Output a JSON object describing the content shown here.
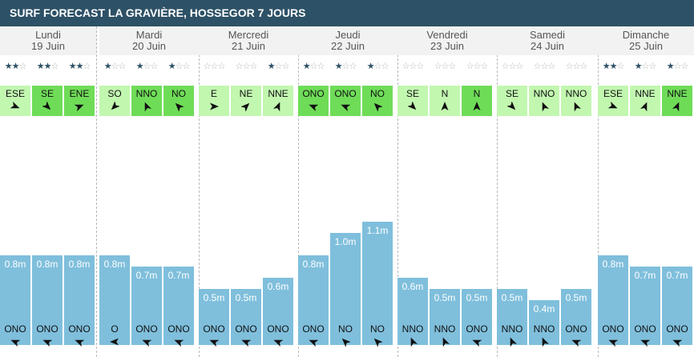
{
  "title": "SURF FORECAST LA GRAVIÈRE, HOSSEGOR 7 JOURS",
  "colors": {
    "header_bg": "#2d5166",
    "wind_light": "#c2f7b0",
    "wind_strong": "#6fdc58",
    "wave_bar": "#7fbfdc",
    "star_on": "#2d5166",
    "star_off": "#b4b4b4"
  },
  "days": [
    {
      "name": "Lundi",
      "date": "19 Juin",
      "slots": [
        {
          "stars": 2,
          "wind": "ESE",
          "wind_level": "light",
          "wave": "0.8m",
          "wave_m": 0.8,
          "swell": "ONO"
        },
        {
          "stars": 2,
          "wind": "SE",
          "wind_level": "strong",
          "wave": "0.8m",
          "wave_m": 0.8,
          "swell": "ONO"
        },
        {
          "stars": 2,
          "wind": "ENE",
          "wind_level": "strong",
          "wave": "0.8m",
          "wave_m": 0.8,
          "swell": "ONO"
        }
      ]
    },
    {
      "name": "Mardi",
      "date": "20 Juin",
      "slots": [
        {
          "stars": 1,
          "wind": "SO",
          "wind_level": "light",
          "wave": "0.8m",
          "wave_m": 0.8,
          "swell": "O"
        },
        {
          "stars": 1,
          "wind": "NNO",
          "wind_level": "strong",
          "wave": "0.7m",
          "wave_m": 0.7,
          "swell": "ONO"
        },
        {
          "stars": 1,
          "wind": "NO",
          "wind_level": "strong",
          "wave": "0.7m",
          "wave_m": 0.7,
          "swell": "ONO"
        }
      ]
    },
    {
      "name": "Mercredi",
      "date": "21 Juin",
      "slots": [
        {
          "stars": 0,
          "wind": "E",
          "wind_level": "light",
          "wave": "0.5m",
          "wave_m": 0.5,
          "swell": "ONO"
        },
        {
          "stars": 0,
          "wind": "NE",
          "wind_level": "light",
          "wave": "0.5m",
          "wave_m": 0.5,
          "swell": "ONO"
        },
        {
          "stars": 1,
          "wind": "NNE",
          "wind_level": "light",
          "wave": "0.6m",
          "wave_m": 0.6,
          "swell": "ONO"
        }
      ]
    },
    {
      "name": "Jeudi",
      "date": "22 Juin",
      "slots": [
        {
          "stars": 1,
          "wind": "ONO",
          "wind_level": "strong",
          "wave": "0.8m",
          "wave_m": 0.8,
          "swell": "ONO"
        },
        {
          "stars": 1,
          "wind": "ONO",
          "wind_level": "strong",
          "wave": "1.0m",
          "wave_m": 1.0,
          "swell": "NO"
        },
        {
          "stars": 1,
          "wind": "NO",
          "wind_level": "strong",
          "wave": "1.1m",
          "wave_m": 1.1,
          "swell": "NO"
        }
      ]
    },
    {
      "name": "Vendredi",
      "date": "23 Juin",
      "slots": [
        {
          "stars": 0,
          "wind": "SE",
          "wind_level": "light",
          "wave": "0.6m",
          "wave_m": 0.6,
          "swell": "NNO"
        },
        {
          "stars": 0,
          "wind": "N",
          "wind_level": "light",
          "wave": "0.5m",
          "wave_m": 0.5,
          "swell": "NNO"
        },
        {
          "stars": 0,
          "wind": "N",
          "wind_level": "strong",
          "wave": "0.5m",
          "wave_m": 0.5,
          "swell": "ONO"
        }
      ]
    },
    {
      "name": "Samedi",
      "date": "24 Juin",
      "slots": [
        {
          "stars": 0,
          "wind": "SE",
          "wind_level": "light",
          "wave": "0.5m",
          "wave_m": 0.5,
          "swell": "NNO"
        },
        {
          "stars": 0,
          "wind": "NNO",
          "wind_level": "light",
          "wave": "0.4m",
          "wave_m": 0.4,
          "swell": "NNO"
        },
        {
          "stars": 0,
          "wind": "NNO",
          "wind_level": "light",
          "wave": "0.5m",
          "wave_m": 0.5,
          "swell": "ONO"
        }
      ]
    },
    {
      "name": "Dimanche",
      "date": "25 Juin",
      "slots": [
        {
          "stars": 2,
          "wind": "ESE",
          "wind_level": "light",
          "wave": "0.8m",
          "wave_m": 0.8,
          "swell": "ONO"
        },
        {
          "stars": 1,
          "wind": "NNE",
          "wind_level": "light",
          "wave": "0.7m",
          "wave_m": 0.7,
          "swell": "ONO"
        },
        {
          "stars": 1,
          "wind": "NNE",
          "wind_level": "strong",
          "wave": "0.7m",
          "wave_m": 0.7,
          "swell": "ONO"
        }
      ]
    }
  ]
}
